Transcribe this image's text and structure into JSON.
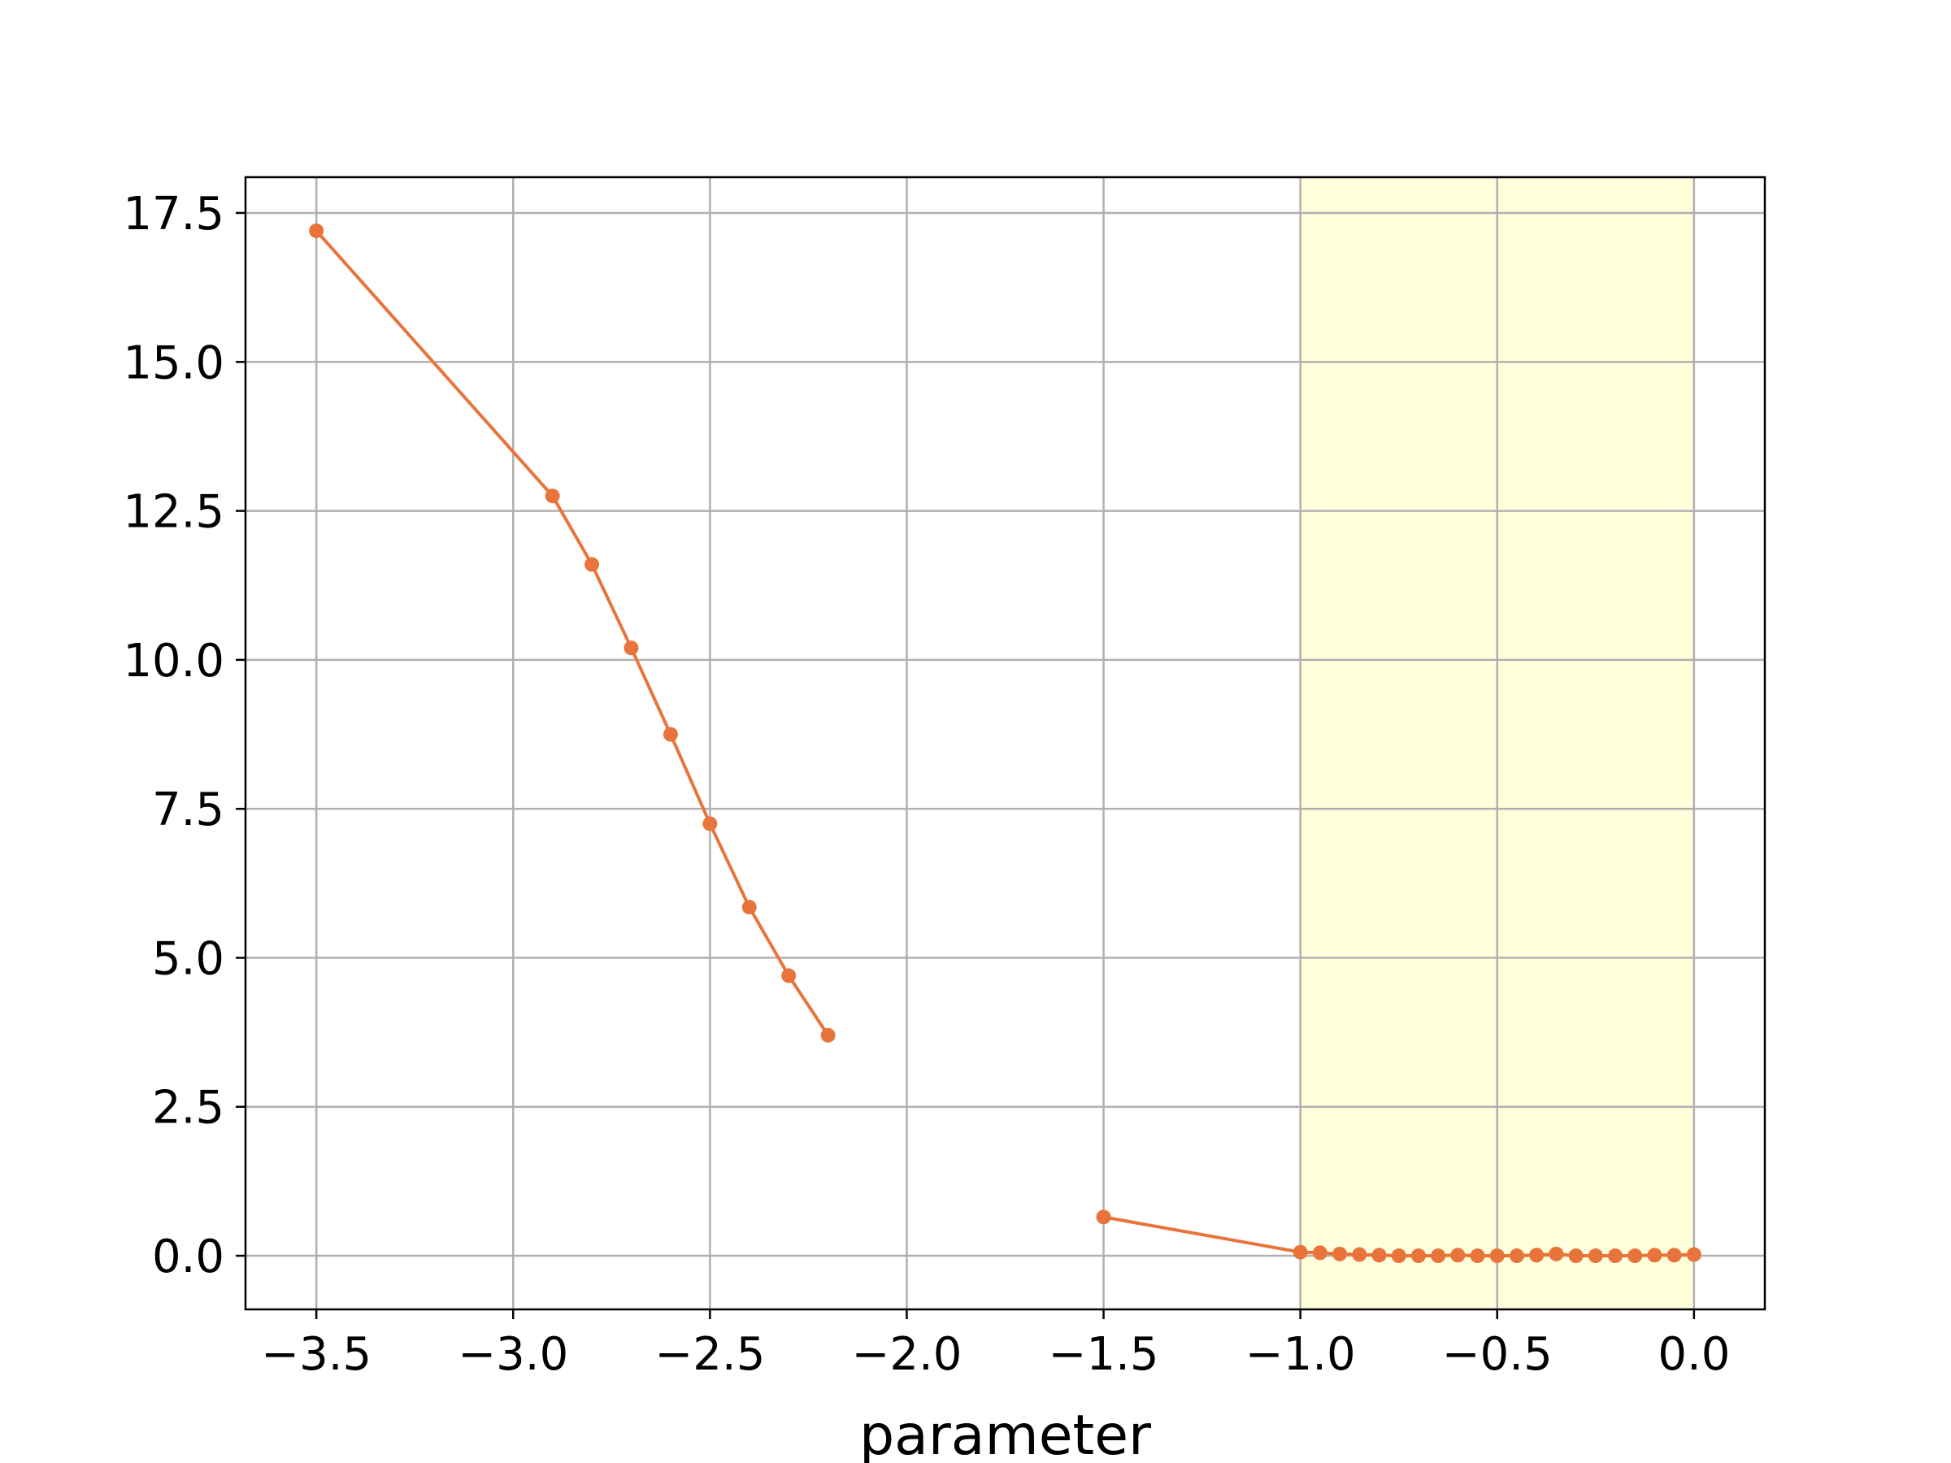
{
  "chart_data": {
    "type": "line",
    "title": "",
    "xlabel": "parameter",
    "ylabel": "",
    "xlim": [
      -3.68,
      0.18
    ],
    "ylim": [
      -0.9,
      18.1
    ],
    "xticks": [
      -3.5,
      -3.0,
      -2.5,
      -2.0,
      -1.5,
      -1.0,
      -0.5,
      0.0
    ],
    "xtick_labels": [
      "−3.5",
      "−3.0",
      "−2.5",
      "−2.0",
      "−1.5",
      "−1.0",
      "−0.5",
      "0.0"
    ],
    "yticks": [
      0.0,
      2.5,
      5.0,
      7.5,
      10.0,
      12.5,
      15.0,
      17.5
    ],
    "ytick_labels": [
      "0.0",
      "2.5",
      "5.0",
      "7.5",
      "10.0",
      "12.5",
      "15.0",
      "17.5"
    ],
    "grid": true,
    "shaded_region": {
      "x_start": -1.0,
      "x_end": 0.0,
      "color": "#ffffdc"
    },
    "series": [
      {
        "color": "#e8743b",
        "segments": [
          {
            "x": [
              -3.5,
              -2.9,
              -2.8,
              -2.7,
              -2.6,
              -2.5,
              -2.4,
              -2.3,
              -2.2
            ],
            "y": [
              17.2,
              12.75,
              11.6,
              10.2,
              8.75,
              7.25,
              5.85,
              4.7,
              3.7
            ]
          },
          {
            "x": [
              -1.5,
              -1.0,
              -0.95,
              -0.9,
              -0.85,
              -0.8,
              -0.75,
              -0.7,
              -0.65,
              -0.6,
              -0.55,
              -0.5,
              -0.45,
              -0.4,
              -0.35,
              -0.3,
              -0.25,
              -0.2,
              -0.15,
              -0.1,
              -0.05,
              0.0
            ],
            "y": [
              0.65,
              0.06,
              0.05,
              0.03,
              0.02,
              0.01,
              0.0,
              0.0,
              0.0,
              0.01,
              0.0,
              0.0,
              0.0,
              0.01,
              0.03,
              0.0,
              0.0,
              0.0,
              0.0,
              0.01,
              0.01,
              0.02
            ]
          }
        ]
      }
    ]
  }
}
